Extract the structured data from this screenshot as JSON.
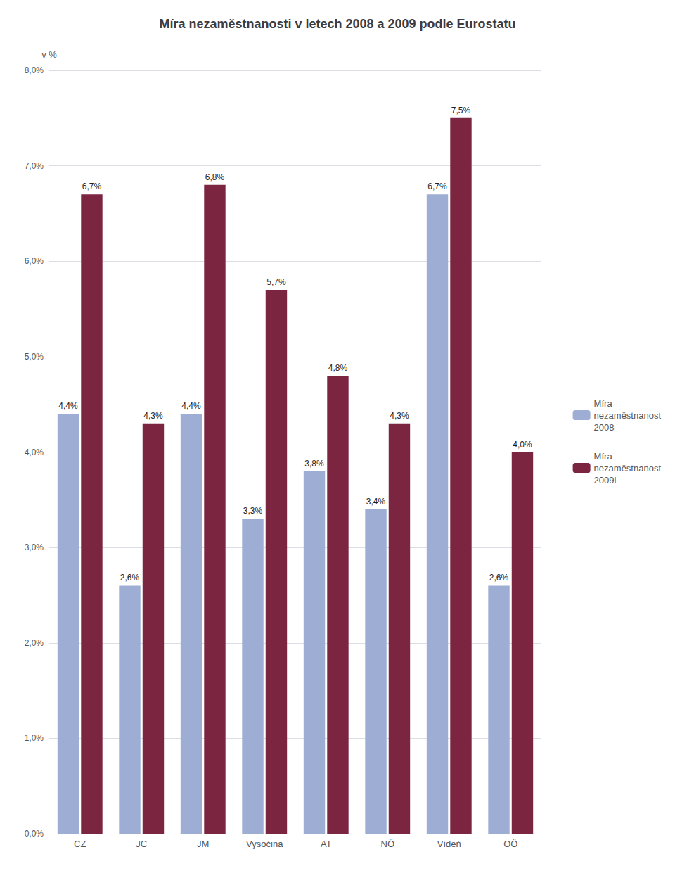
{
  "chart_data": {
    "type": "bar",
    "title": "Míra nezaměstnanosti v letech 2008 a 2009 podle Eurostatu",
    "categories": [
      "CZ",
      "JC",
      "JM",
      "Vysočina",
      "AT",
      "NÖ",
      "Vídeň",
      "OÖ"
    ],
    "series": [
      {
        "name": "Míra\nnezaměstnanost\n2008",
        "color": "#9eadd4",
        "values": [
          4.4,
          2.6,
          4.4,
          3.3,
          3.8,
          3.4,
          6.7,
          2.6
        ],
        "value_labels": [
          "4,4%",
          "2,6%",
          "4,4%",
          "3,3%",
          "3,8%",
          "3,4%",
          "6,7%",
          "2,6%"
        ]
      },
      {
        "name": "Míra\nnezaměstnanost\n2009i",
        "color": "#7b2540",
        "values": [
          6.7,
          4.3,
          6.8,
          5.7,
          4.8,
          4.3,
          7.5,
          4.0
        ],
        "value_labels": [
          "6,7%",
          "4,3%",
          "6,8%",
          "5,7%",
          "4,8%",
          "4,3%",
          "7,5%",
          "4,0%"
        ]
      }
    ],
    "ylabel": "v %",
    "ylim": [
      0.0,
      8.0
    ],
    "yticks": [
      {
        "value": 0.0,
        "label": "0,0%"
      },
      {
        "value": 1.0,
        "label": "1,0%"
      },
      {
        "value": 2.0,
        "label": "2,0%"
      },
      {
        "value": 3.0,
        "label": "3,0%"
      },
      {
        "value": 4.0,
        "label": "4,0%"
      },
      {
        "value": 5.0,
        "label": "5,0%"
      },
      {
        "value": 6.0,
        "label": "6,0%"
      },
      {
        "value": 7.0,
        "label": "7,0%"
      },
      {
        "value": 8.0,
        "label": "8,0%"
      }
    ],
    "grid": true,
    "legend": "right",
    "data_labels": true
  }
}
